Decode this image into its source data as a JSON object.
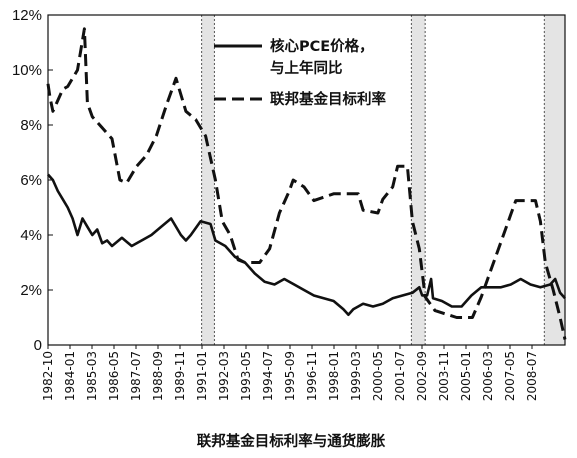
{
  "chart_data": {
    "type": "line",
    "title": "联邦基金目标利率与通货膨胀",
    "x_tick_labels": [
      "1982-10",
      "1984-01",
      "1985-03",
      "1986-05",
      "1987-07",
      "1988-09",
      "1989-11",
      "1991-01",
      "1992-03",
      "1993-05",
      "1994-07",
      "1995-09",
      "1996-11",
      "1998-01",
      "1999-03",
      "2000-05",
      "2001-07",
      "2002-09",
      "2003-11",
      "2005-01",
      "2006-03",
      "2007-05",
      "2008-07"
    ],
    "y_tick_labels": [
      "0",
      "2%",
      "4%",
      "6%",
      "8%",
      "10%",
      "12%"
    ],
    "xlim": [
      1982.75,
      2009.0
    ],
    "ylim": [
      0,
      12
    ],
    "grid": false,
    "legend_position": "top-center",
    "recession_shading": [
      [
        1990.55,
        1991.2
      ],
      [
        2001.2,
        2001.9
      ],
      [
        2007.95,
        2009.0
      ]
    ],
    "series": [
      {
        "name": "核心PCE价格，\n与上年同比",
        "style": "solid",
        "points": [
          [
            1982.75,
            6.2
          ],
          [
            1983.0,
            6.0
          ],
          [
            1983.25,
            5.6
          ],
          [
            1983.5,
            5.3
          ],
          [
            1983.75,
            5.0
          ],
          [
            1984.0,
            4.6
          ],
          [
            1984.25,
            4.0
          ],
          [
            1984.5,
            4.6
          ],
          [
            1984.75,
            4.3
          ],
          [
            1985.0,
            4.0
          ],
          [
            1985.25,
            4.2
          ],
          [
            1985.5,
            3.7
          ],
          [
            1985.75,
            3.8
          ],
          [
            1986.0,
            3.6
          ],
          [
            1986.5,
            3.9
          ],
          [
            1987.0,
            3.6
          ],
          [
            1987.5,
            3.8
          ],
          [
            1988.0,
            4.0
          ],
          [
            1988.5,
            4.3
          ],
          [
            1989.0,
            4.6
          ],
          [
            1989.5,
            4.0
          ],
          [
            1989.75,
            3.8
          ],
          [
            1990.0,
            4.0
          ],
          [
            1990.5,
            4.5
          ],
          [
            1991.0,
            4.4
          ],
          [
            1991.25,
            3.8
          ],
          [
            1991.75,
            3.6
          ],
          [
            1992.25,
            3.2
          ],
          [
            1992.75,
            3.0
          ],
          [
            1993.25,
            2.6
          ],
          [
            1993.75,
            2.3
          ],
          [
            1994.25,
            2.2
          ],
          [
            1994.75,
            2.4
          ],
          [
            1995.25,
            2.2
          ],
          [
            1995.75,
            2.0
          ],
          [
            1996.25,
            1.8
          ],
          [
            1996.75,
            1.7
          ],
          [
            1997.25,
            1.6
          ],
          [
            1997.75,
            1.3
          ],
          [
            1998.0,
            1.1
          ],
          [
            1998.25,
            1.3
          ],
          [
            1998.75,
            1.5
          ],
          [
            1999.25,
            1.4
          ],
          [
            1999.75,
            1.5
          ],
          [
            2000.25,
            1.7
          ],
          [
            2000.75,
            1.8
          ],
          [
            2001.25,
            1.9
          ],
          [
            2001.6,
            2.1
          ],
          [
            2001.75,
            1.8
          ],
          [
            2002.0,
            1.8
          ],
          [
            2002.2,
            2.4
          ],
          [
            2002.3,
            1.7
          ],
          [
            2002.75,
            1.6
          ],
          [
            2003.25,
            1.4
          ],
          [
            2003.75,
            1.4
          ],
          [
            2004.25,
            1.8
          ],
          [
            2004.75,
            2.1
          ],
          [
            2005.25,
            2.1
          ],
          [
            2005.75,
            2.1
          ],
          [
            2006.25,
            2.2
          ],
          [
            2006.75,
            2.4
          ],
          [
            2007.25,
            2.2
          ],
          [
            2007.75,
            2.1
          ],
          [
            2008.25,
            2.2
          ],
          [
            2008.5,
            2.4
          ],
          [
            2008.75,
            1.9
          ],
          [
            2009.0,
            1.7
          ]
        ]
      },
      {
        "name": "联邦基金目标利率",
        "style": "dashed",
        "points": [
          [
            1982.75,
            9.5
          ],
          [
            1982.85,
            9.0
          ],
          [
            1983.0,
            8.5
          ],
          [
            1983.5,
            9.3
          ],
          [
            1983.75,
            9.4
          ],
          [
            1984.25,
            10.0
          ],
          [
            1984.6,
            11.5
          ],
          [
            1984.75,
            8.8
          ],
          [
            1985.0,
            8.3
          ],
          [
            1985.5,
            7.9
          ],
          [
            1986.0,
            7.5
          ],
          [
            1986.4,
            6.0
          ],
          [
            1986.75,
            5.9
          ],
          [
            1987.25,
            6.5
          ],
          [
            1987.75,
            6.9
          ],
          [
            1988.25,
            7.6
          ],
          [
            1988.75,
            8.7
          ],
          [
            1989.25,
            9.7
          ],
          [
            1989.75,
            8.5
          ],
          [
            1990.25,
            8.2
          ],
          [
            1990.75,
            7.6
          ],
          [
            1991.0,
            6.8
          ],
          [
            1991.25,
            6.0
          ],
          [
            1991.6,
            4.5
          ],
          [
            1992.0,
            4.0
          ],
          [
            1992.4,
            3.1
          ],
          [
            1992.75,
            3.0
          ],
          [
            1993.5,
            3.0
          ],
          [
            1994.0,
            3.5
          ],
          [
            1994.5,
            4.8
          ],
          [
            1995.0,
            5.6
          ],
          [
            1995.2,
            6.0
          ],
          [
            1995.75,
            5.75
          ],
          [
            1996.25,
            5.25
          ],
          [
            1997.25,
            5.5
          ],
          [
            1998.5,
            5.5
          ],
          [
            1998.75,
            4.9
          ],
          [
            1999.5,
            4.8
          ],
          [
            1999.75,
            5.3
          ],
          [
            2000.25,
            5.75
          ],
          [
            2000.5,
            6.5
          ],
          [
            2001.0,
            6.5
          ],
          [
            2001.25,
            4.5
          ],
          [
            2001.6,
            3.5
          ],
          [
            2001.9,
            1.75
          ],
          [
            2002.4,
            1.25
          ],
          [
            2003.5,
            1.0
          ],
          [
            2004.3,
            1.0
          ],
          [
            2004.75,
            1.75
          ],
          [
            2005.25,
            2.75
          ],
          [
            2005.75,
            3.75
          ],
          [
            2006.25,
            4.75
          ],
          [
            2006.5,
            5.25
          ],
          [
            2007.5,
            5.25
          ],
          [
            2007.75,
            4.5
          ],
          [
            2008.0,
            3.0
          ],
          [
            2008.4,
            2.0
          ],
          [
            2008.75,
            1.0
          ],
          [
            2009.0,
            0.2
          ]
        ]
      }
    ]
  }
}
